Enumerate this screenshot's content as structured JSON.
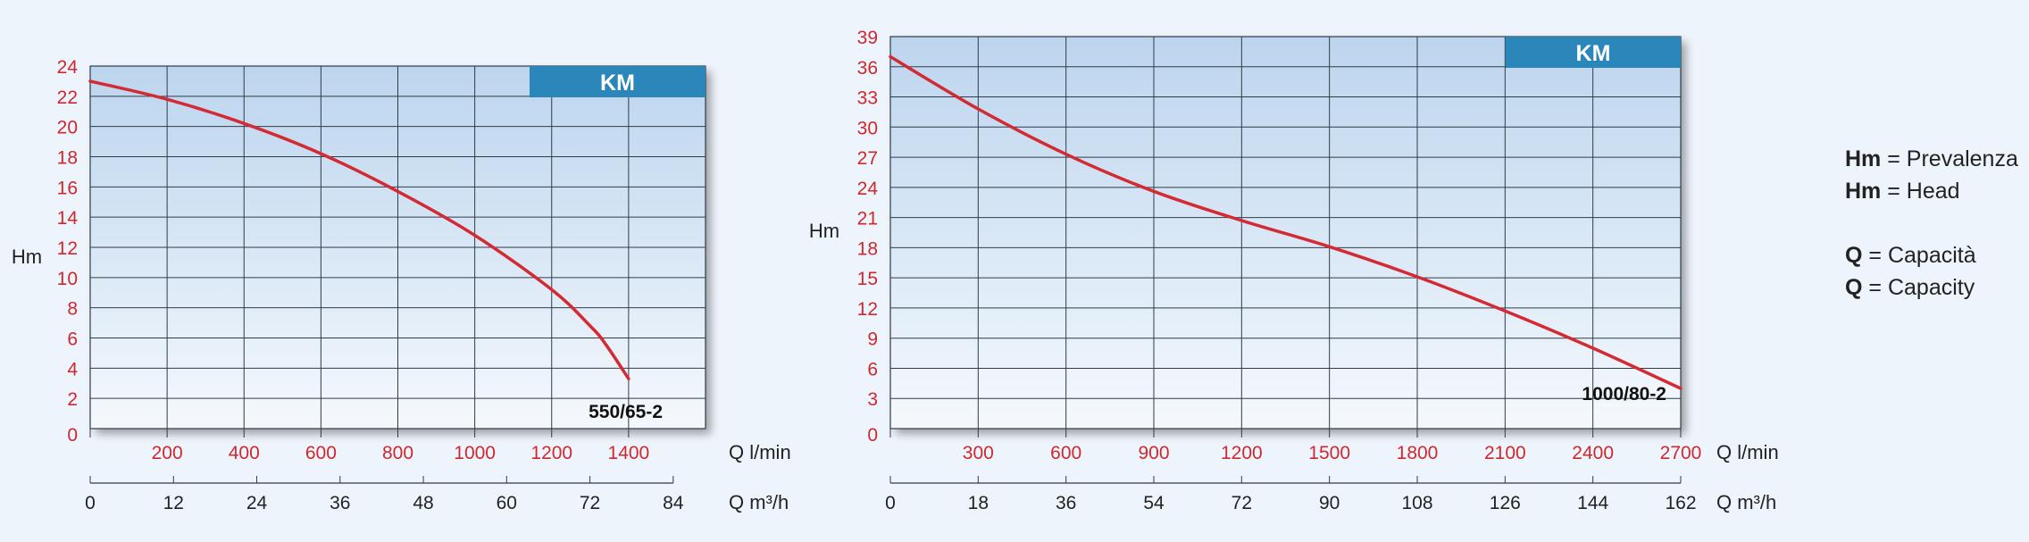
{
  "colors": {
    "curve": "#d42a33",
    "tick_red": "#d0282e",
    "km_box": "#2b87b9",
    "grid": "#2f3c48",
    "plot_top": "#bcd5ee",
    "plot_bottom": "#f5f9fd"
  },
  "legend": {
    "items": [
      {
        "symbol": "Hm",
        "text": "= Prevalenza"
      },
      {
        "symbol": "Hm",
        "text": "= Head"
      },
      {
        "symbol": "Q",
        "text": "= Capacità"
      },
      {
        "symbol": "Q",
        "text": "= Capacity"
      }
    ]
  },
  "chart_data": [
    {
      "type": "line",
      "badge": "KM",
      "ylabel": "Hm",
      "xlabel": "Q l/min",
      "xlabel2": "Q m³/h",
      "ylim": [
        0,
        24
      ],
      "xlim": [
        0,
        1600
      ],
      "y_ticks": [
        2,
        4,
        6,
        8,
        10,
        12,
        14,
        16,
        18,
        20,
        22,
        24
      ],
      "y_zero_label": "0",
      "x_ticks": [
        200,
        400,
        600,
        800,
        1000,
        1200,
        1400
      ],
      "x2_ticks": [
        0,
        12,
        24,
        36,
        48,
        60,
        72,
        84
      ],
      "grid": true,
      "series": [
        {
          "name": "550/65-2",
          "x": [
            0,
            200,
            400,
            600,
            800,
            1000,
            1200,
            1300,
            1340,
            1400
          ],
          "y": [
            23.0,
            21.8,
            20.2,
            18.2,
            15.7,
            12.8,
            9.2,
            6.8,
            5.6,
            3.3
          ]
        }
      ]
    },
    {
      "type": "line",
      "badge": "KM",
      "ylabel": "Hm",
      "xlabel": "Q l/min",
      "xlabel2": "Q m³/h",
      "ylim": [
        0,
        39
      ],
      "xlim": [
        0,
        2700
      ],
      "y_ticks": [
        3,
        6,
        9,
        12,
        15,
        18,
        21,
        24,
        27,
        30,
        33,
        36,
        39
      ],
      "y_zero_label": "0",
      "x_ticks": [
        300,
        600,
        900,
        1200,
        1500,
        1800,
        2100,
        2400,
        2700
      ],
      "x2_ticks": [
        0,
        18,
        36,
        54,
        72,
        90,
        108,
        126,
        144,
        162
      ],
      "grid": true,
      "series": [
        {
          "name": "1000/80-2",
          "x": [
            0,
            300,
            600,
            900,
            1200,
            1500,
            1800,
            2100,
            2400,
            2700
          ],
          "y": [
            37.0,
            31.8,
            27.3,
            23.6,
            20.7,
            18.1,
            15.1,
            11.7,
            8.0,
            4.0
          ]
        }
      ]
    }
  ]
}
